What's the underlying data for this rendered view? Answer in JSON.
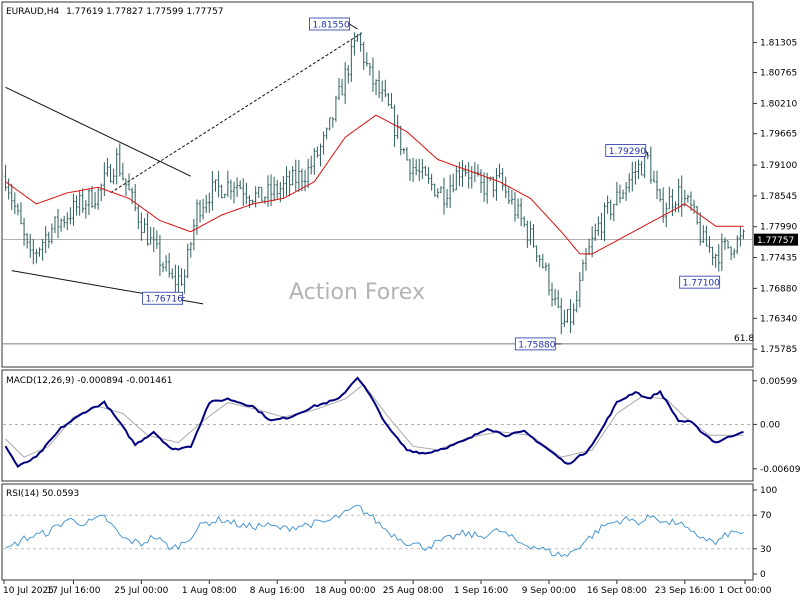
{
  "main_header": {
    "symbol": "EURAUD,H4",
    "ohlc": "1.77619 1.77827 1.77599 1.77757"
  },
  "watermark": "Action Forex",
  "colors": {
    "candles": "#2f5f5f",
    "ma": "#dd1111",
    "macd": "#000080",
    "signal": "#aaaaaa",
    "rsi": "#3a8fd0",
    "grid": "#999999"
  },
  "chart_data": [
    {
      "type": "candlestick",
      "panel": "price",
      "ylim": [
        1.755,
        1.82
      ],
      "y_ticks": [
        "1.81305",
        "1.80765",
        "1.80210",
        "1.79665",
        "1.79100",
        "1.78545",
        "1.77990",
        "1.77435",
        "1.76880",
        "1.76340",
        "1.75785"
      ],
      "current_price": "1.77757",
      "price_anchors": [
        [
          0,
          1.789
        ],
        [
          8,
          1.774
        ],
        [
          14,
          1.779
        ],
        [
          22,
          1.783
        ],
        [
          30,
          1.786
        ],
        [
          36,
          1.792
        ],
        [
          42,
          1.783
        ],
        [
          48,
          1.776
        ],
        [
          54,
          1.77
        ],
        [
          58,
          1.771
        ],
        [
          62,
          1.783
        ],
        [
          66,
          1.786
        ],
        [
          74,
          1.788
        ],
        [
          82,
          1.785
        ],
        [
          90,
          1.787
        ],
        [
          98,
          1.79
        ],
        [
          104,
          1.796
        ],
        [
          110,
          1.807
        ],
        [
          114,
          1.814
        ],
        [
          118,
          1.807
        ],
        [
          124,
          1.801
        ],
        [
          130,
          1.792
        ],
        [
          136,
          1.788
        ],
        [
          142,
          1.786
        ],
        [
          148,
          1.791
        ],
        [
          154,
          1.787
        ],
        [
          160,
          1.788
        ],
        [
          166,
          1.782
        ],
        [
          172,
          1.776
        ],
        [
          176,
          1.77
        ],
        [
          180,
          1.762
        ],
        [
          184,
          1.764
        ],
        [
          188,
          1.774
        ],
        [
          192,
          1.78
        ],
        [
          198,
          1.785
        ],
        [
          204,
          1.79
        ],
        [
          208,
          1.792
        ],
        [
          212,
          1.783
        ],
        [
          218,
          1.786
        ],
        [
          222,
          1.783
        ],
        [
          226,
          1.777
        ],
        [
          230,
          1.775
        ],
        [
          236,
          1.777
        ],
        [
          239,
          1.7776
        ]
      ],
      "ma_anchors": [
        [
          0,
          1.788
        ],
        [
          10,
          1.784
        ],
        [
          20,
          1.786
        ],
        [
          30,
          1.787
        ],
        [
          40,
          1.785
        ],
        [
          50,
          1.781
        ],
        [
          60,
          1.779
        ],
        [
          70,
          1.782
        ],
        [
          80,
          1.784
        ],
        [
          90,
          1.785
        ],
        [
          100,
          1.788
        ],
        [
          110,
          1.796
        ],
        [
          120,
          1.8
        ],
        [
          130,
          1.797
        ],
        [
          140,
          1.792
        ],
        [
          150,
          1.79
        ],
        [
          160,
          1.788
        ],
        [
          170,
          1.785
        ],
        [
          180,
          1.779
        ],
        [
          186,
          1.775
        ],
        [
          190,
          1.775
        ],
        [
          200,
          1.778
        ],
        [
          210,
          1.781
        ],
        [
          220,
          1.784
        ],
        [
          230,
          1.78
        ],
        [
          239,
          1.78
        ]
      ],
      "annotations": [
        {
          "text": "1.81550",
          "index": 114,
          "price": 1.8155,
          "anchor": "left"
        },
        {
          "text": "1.79290",
          "index": 208,
          "price": 1.7929,
          "anchor": "left"
        },
        {
          "text": "1.76716",
          "index": 58,
          "price": 1.7672,
          "anchor": "left"
        },
        {
          "text": "1.77100",
          "index": 230,
          "price": 1.771,
          "anchor": "left"
        },
        {
          "text": "1.75880",
          "index": 180,
          "price": 1.7588,
          "anchor": "left"
        }
      ],
      "fib_label": "61.8",
      "fib_level": 1.7588,
      "trendlines": [
        {
          "from": [
            0,
            1.805
          ],
          "to": [
            60,
            1.789
          ],
          "style": "solid"
        },
        {
          "from": [
            2,
            1.772
          ],
          "to": [
            64,
            1.766
          ],
          "style": "solid"
        },
        {
          "from": [
            34,
            1.786
          ],
          "to": [
            116,
            1.815
          ],
          "style": "dashed"
        }
      ]
    },
    {
      "type": "line",
      "panel": "macd",
      "title": "MACD(12,26,9) -0.000894 -0.001461",
      "ylim": [
        -0.0075,
        0.0072
      ],
      "y_ticks": [
        {
          "label": "0.00599",
          "value": 0.00599
        },
        {
          "label": "0.00",
          "value": 0.0
        },
        {
          "label": "-0.006095",
          "value": -0.006095
        }
      ],
      "macd_anchors": [
        [
          0,
          -0.003
        ],
        [
          4,
          -0.0058
        ],
        [
          10,
          -0.0045
        ],
        [
          18,
          -0.0005
        ],
        [
          26,
          0.0018
        ],
        [
          32,
          0.003
        ],
        [
          36,
          0.0008
        ],
        [
          42,
          -0.0028
        ],
        [
          48,
          -0.001
        ],
        [
          54,
          -0.0035
        ],
        [
          60,
          -0.003
        ],
        [
          66,
          0.003
        ],
        [
          72,
          0.0035
        ],
        [
          80,
          0.0025
        ],
        [
          86,
          0.0005
        ],
        [
          92,
          0.001
        ],
        [
          100,
          0.0025
        ],
        [
          108,
          0.0035
        ],
        [
          114,
          0.0065
        ],
        [
          118,
          0.004
        ],
        [
          124,
          -0.0005
        ],
        [
          130,
          -0.0035
        ],
        [
          136,
          -0.004
        ],
        [
          144,
          -0.003
        ],
        [
          150,
          -0.002
        ],
        [
          156,
          -0.0005
        ],
        [
          162,
          -0.0015
        ],
        [
          168,
          -0.001
        ],
        [
          176,
          -0.0035
        ],
        [
          182,
          -0.0055
        ],
        [
          188,
          -0.0038
        ],
        [
          192,
          -0.0015
        ],
        [
          198,
          0.003
        ],
        [
          204,
          0.0045
        ],
        [
          208,
          0.0035
        ],
        [
          212,
          0.0045
        ],
        [
          218,
          0.0005
        ],
        [
          222,
          0.0003
        ],
        [
          226,
          -0.0012
        ],
        [
          230,
          -0.0025
        ],
        [
          234,
          -0.0018
        ],
        [
          239,
          -0.0009
        ]
      ],
      "signal_anchors": [
        [
          0,
          -0.002
        ],
        [
          6,
          -0.0045
        ],
        [
          14,
          -0.003
        ],
        [
          22,
          0.001
        ],
        [
          30,
          0.0025
        ],
        [
          38,
          0.0015
        ],
        [
          46,
          -0.0015
        ],
        [
          56,
          -0.0025
        ],
        [
          64,
          0.0005
        ],
        [
          72,
          0.003
        ],
        [
          82,
          0.002
        ],
        [
          90,
          0.001
        ],
        [
          100,
          0.002
        ],
        [
          110,
          0.0035
        ],
        [
          116,
          0.0055
        ],
        [
          124,
          0.001
        ],
        [
          132,
          -0.003
        ],
        [
          140,
          -0.0035
        ],
        [
          150,
          -0.0018
        ],
        [
          160,
          -0.001
        ],
        [
          170,
          -0.0015
        ],
        [
          180,
          -0.0045
        ],
        [
          190,
          -0.0035
        ],
        [
          198,
          0.0015
        ],
        [
          206,
          0.0038
        ],
        [
          214,
          0.0035
        ],
        [
          220,
          0.001
        ],
        [
          228,
          -0.0015
        ],
        [
          239,
          -0.0015
        ]
      ]
    },
    {
      "type": "line",
      "panel": "rsi",
      "title": "RSI(14) 50.0593",
      "ylim": [
        0,
        100
      ],
      "y_ticks": [
        {
          "label": "100",
          "value": 100
        },
        {
          "label": "70",
          "value": 70
        },
        {
          "label": "30",
          "value": 30
        },
        {
          "label": "0",
          "value": 0
        }
      ],
      "levels": [
        70,
        30
      ],
      "rsi_anchors": [
        [
          0,
          28
        ],
        [
          6,
          42
        ],
        [
          14,
          50
        ],
        [
          20,
          65
        ],
        [
          26,
          60
        ],
        [
          32,
          68
        ],
        [
          38,
          42
        ],
        [
          44,
          36
        ],
        [
          48,
          45
        ],
        [
          54,
          30
        ],
        [
          58,
          38
        ],
        [
          64,
          60
        ],
        [
          70,
          65
        ],
        [
          78,
          56
        ],
        [
          84,
          58
        ],
        [
          90,
          54
        ],
        [
          96,
          58
        ],
        [
          104,
          62
        ],
        [
          110,
          72
        ],
        [
          114,
          80
        ],
        [
          118,
          70
        ],
        [
          124,
          50
        ],
        [
          130,
          38
        ],
        [
          136,
          32
        ],
        [
          142,
          40
        ],
        [
          148,
          48
        ],
        [
          154,
          45
        ],
        [
          160,
          52
        ],
        [
          166,
          38
        ],
        [
          172,
          32
        ],
        [
          178,
          24
        ],
        [
          182,
          22
        ],
        [
          188,
          40
        ],
        [
          194,
          58
        ],
        [
          200,
          65
        ],
        [
          206,
          62
        ],
        [
          210,
          70
        ],
        [
          214,
          60
        ],
        [
          218,
          62
        ],
        [
          222,
          48
        ],
        [
          226,
          44
        ],
        [
          230,
          36
        ],
        [
          234,
          48
        ],
        [
          239,
          50
        ]
      ]
    }
  ],
  "x_axis": {
    "n_bars": 240,
    "labels": [
      {
        "text": "10 Jul 2025",
        "index": 0
      },
      {
        "text": "17 Jul 16:00",
        "index": 22
      },
      {
        "text": "25 Jul 00:00",
        "index": 44
      },
      {
        "text": "1 Aug 08:00",
        "index": 66
      },
      {
        "text": "8 Aug 16:00",
        "index": 88
      },
      {
        "text": "18 Aug 00:00",
        "index": 110
      },
      {
        "text": "25 Aug 08:00",
        "index": 132
      },
      {
        "text": "1 Sep 16:00",
        "index": 154
      },
      {
        "text": "9 Sep 00:00",
        "index": 176
      },
      {
        "text": "16 Sep 08:00",
        "index": 198
      },
      {
        "text": "23 Sep 16:00",
        "index": 220
      },
      {
        "text": "1 Oct 00:00",
        "index": 242
      }
    ]
  }
}
